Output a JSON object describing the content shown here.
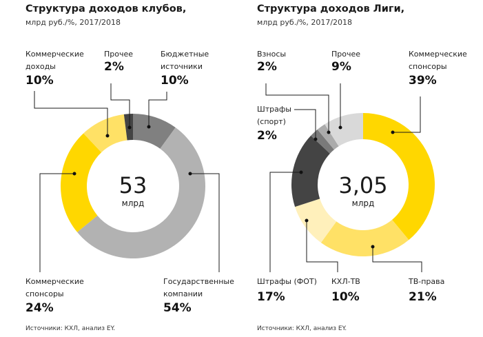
{
  "chart_data": [
    {
      "type": "pie",
      "title": "Структура доходов клубов,",
      "subtitle": "млрд руб./%, 2017/2018",
      "total": "53",
      "total_unit": "млрд",
      "source": "Источники: КХЛ, анализ EY.",
      "slices": [
        {
          "label": "Бюджетные источники",
          "label_lines": [
            "Бюджетные",
            "источники"
          ],
          "value": 10,
          "pct_text": "10%",
          "color": "#808080"
        },
        {
          "label": "Государственные компании",
          "label_lines": [
            "Государственные",
            "компании"
          ],
          "value": 54,
          "pct_text": "54%",
          "color": "#b2b2b2"
        },
        {
          "label": "Коммерческие спонсоры",
          "label_lines": [
            "Коммерческие",
            "спонсоры"
          ],
          "value": 24,
          "pct_text": "24%",
          "color": "#ffd700"
        },
        {
          "label": "Коммерческие доходы",
          "label_lines": [
            "Коммерческие",
            "доходы"
          ],
          "value": 10,
          "pct_text": "10%",
          "color": "#ffe166"
        },
        {
          "label": "Прочее",
          "label_lines": [
            "Прочее"
          ],
          "value": 2,
          "pct_text": "2%",
          "color": "#444444"
        }
      ]
    },
    {
      "type": "pie",
      "title": "Структура доходов Лиги,",
      "subtitle": "млрд руб./%, 2017/2018",
      "total": "3,05",
      "total_unit": "млрд",
      "source": "Источники: КХЛ, анализ EY.",
      "slices": [
        {
          "label": "Коммерческие спонсоры",
          "label_lines": [
            "Коммерческие",
            "спонсоры"
          ],
          "value": 39,
          "pct_text": "39%",
          "color": "#ffd700"
        },
        {
          "label": "ТВ-права",
          "label_lines": [
            "ТВ-права"
          ],
          "value": 21,
          "pct_text": "21%",
          "color": "#ffe166"
        },
        {
          "label": "КХЛ-ТВ",
          "label_lines": [
            "КХЛ-ТВ"
          ],
          "value": 10,
          "pct_text": "10%",
          "color": "#fff0bb"
        },
        {
          "label": "Штрафы (ФОТ)",
          "label_lines": [
            "Штрафы (ФОТ)"
          ],
          "value": 17,
          "pct_text": "17%",
          "color": "#444444"
        },
        {
          "label": "Штрафы (спорт)",
          "label_lines": [
            "Штрафы",
            "(спорт)"
          ],
          "value": 2,
          "pct_text": "2%",
          "color": "#7a7a7a"
        },
        {
          "label": "Взносы",
          "label_lines": [
            "Взносы"
          ],
          "value": 2,
          "pct_text": "2%",
          "color": "#ababab"
        },
        {
          "label": "Прочее",
          "label_lines": [
            "Прочее"
          ],
          "value": 9,
          "pct_text": "9%",
          "color": "#d9d9d9"
        }
      ]
    }
  ]
}
